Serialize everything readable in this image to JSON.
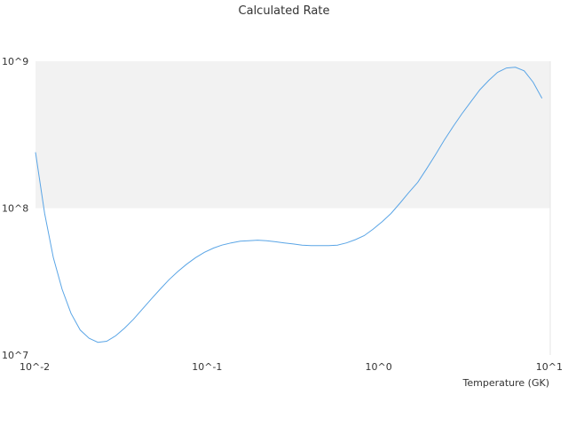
{
  "chart_data": {
    "type": "line",
    "title": "Calculated Rate",
    "xlabel": "Temperature (GK)",
    "ylabel": "",
    "x_scale": "log",
    "y_scale": "log",
    "xlim": [
      0.01,
      10
    ],
    "ylim": [
      10000000,
      1000000000
    ],
    "x_ticks": [
      {
        "value": 0.01,
        "label": "10^-2"
      },
      {
        "value": 0.1,
        "label": "10^-1"
      },
      {
        "value": 1,
        "label": "10^0"
      },
      {
        "value": 10,
        "label": "10^1"
      }
    ],
    "y_ticks": [
      {
        "value": 10000000,
        "label": "10^7"
      },
      {
        "value": 100000000,
        "label": "10^8"
      },
      {
        "value": 1000000000,
        "label": "10^9"
      }
    ],
    "shaded_band": {
      "from": 100000000,
      "to": 1000000000,
      "color": "#f2f2f2"
    },
    "grid": false,
    "legend": "none",
    "line_color": "#5aa5e6",
    "series": [
      {
        "x": [
          0.01,
          0.0113,
          0.0127,
          0.0143,
          0.0161,
          0.0182,
          0.0205,
          0.0231,
          0.026,
          0.0293,
          0.033,
          0.0372,
          0.0419,
          0.0472,
          0.0532,
          0.0599,
          0.0675,
          0.076,
          0.0857,
          0.0965,
          0.109,
          0.122,
          0.138,
          0.156,
          0.175,
          0.197,
          0.222,
          0.25,
          0.282,
          0.318,
          0.358,
          0.403,
          0.454,
          0.512,
          0.576,
          0.649,
          0.732,
          0.824,
          0.929,
          1.05,
          1.18,
          1.33,
          1.5,
          1.69,
          1.9,
          2.14,
          2.41,
          2.72,
          3.06,
          3.45,
          3.89,
          4.38,
          4.93,
          5.56,
          6.26,
          7.05,
          7.95,
          8.95
        ],
        "y": [
          240000000,
          92000000,
          46000000,
          28000000,
          19200000,
          14800000,
          13000000,
          12200000,
          12400000,
          13500000,
          15200000,
          17500000,
          20500000,
          24000000,
          28000000,
          32500000,
          37000000,
          41500000,
          46000000,
          50000000,
          53500000,
          56000000,
          58000000,
          59500000,
          60000000,
          60500000,
          60000000,
          59000000,
          58000000,
          57000000,
          56000000,
          55500000,
          55500000,
          55500000,
          56000000,
          58000000,
          61000000,
          65000000,
          72000000,
          81000000,
          92000000,
          108000000,
          128000000,
          150000000,
          185000000,
          230000000,
          290000000,
          360000000,
          440000000,
          530000000,
          640000000,
          740000000,
          840000000,
          900000000,
          910000000,
          860000000,
          720000000,
          560000000
        ]
      }
    ]
  }
}
